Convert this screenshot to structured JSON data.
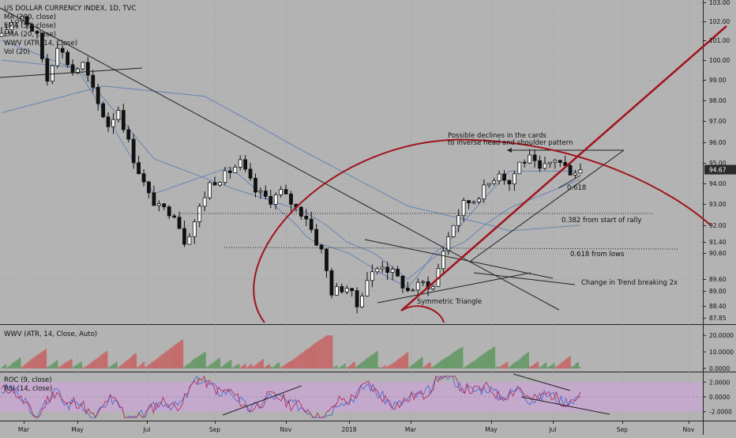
{
  "chart_data": {
    "type": "candlestick",
    "title": "US DOLLAR CURRENCY INDEX, 1D, TVC",
    "legend": [
      "MA (200, close)",
      "EMA (50, close)",
      "EMA (20, close)",
      "WWV (ATR, 14, Close)",
      "Vol (20)"
    ],
    "price_axis": {
      "ticks": [
        "103.00",
        "102.00",
        "101.00",
        "100.00",
        "99.00",
        "98.00",
        "97.00",
        "96.00",
        "95.00",
        "94.00",
        "93.00",
        "92.00",
        "91.40",
        "90.60",
        "89.60",
        "89.00",
        "88.40",
        "87.85"
      ],
      "last_price": "94.67",
      "range": [
        87.5,
        103.3
      ]
    },
    "time_axis": [
      "Mar",
      "May",
      "Jul",
      "Sep",
      "Nov",
      "2018",
      "Mar",
      "May",
      "Jul",
      "Sep",
      "Nov"
    ],
    "price_path": [
      [
        0,
        101.2
      ],
      [
        2,
        102.0
      ],
      [
        4,
        102.3
      ],
      [
        7,
        101.2
      ],
      [
        9,
        99.0
      ],
      [
        11,
        100.8
      ],
      [
        14,
        99.4
      ],
      [
        16,
        99.8
      ],
      [
        19,
        97.8
      ],
      [
        21,
        96.8
      ],
      [
        23,
        97.6
      ],
      [
        26,
        95.2
      ],
      [
        29,
        93.4
      ],
      [
        31,
        92.8
      ],
      [
        34,
        92.6
      ],
      [
        36,
        91.4
      ],
      [
        38,
        92.2
      ],
      [
        41,
        94.0
      ],
      [
        44,
        94.4
      ],
      [
        47,
        95.0
      ],
      [
        50,
        93.6
      ],
      [
        53,
        93.2
      ],
      [
        55,
        93.6
      ],
      [
        58,
        92.8
      ],
      [
        60,
        92.4
      ],
      [
        63,
        90.8
      ],
      [
        65,
        89.0
      ],
      [
        68,
        89.2
      ],
      [
        70,
        88.4
      ],
      [
        72,
        89.6
      ],
      [
        75,
        90.2
      ],
      [
        78,
        89.6
      ],
      [
        80,
        89.0
      ],
      [
        83,
        89.4
      ],
      [
        85,
        89.2
      ],
      [
        88,
        91.6
      ],
      [
        91,
        93.0
      ],
      [
        93,
        93.2
      ],
      [
        96,
        94.0
      ],
      [
        98,
        94.6
      ],
      [
        100,
        94.0
      ],
      [
        102,
        95.0
      ],
      [
        104,
        95.2
      ],
      [
        106,
        94.6
      ],
      [
        109,
        95.2
      ],
      [
        112,
        94.6
      ],
      [
        114,
        94.67
      ]
    ],
    "indicators": {
      "ma200": [
        [
          0,
          97.4
        ],
        [
          20,
          98.7
        ],
        [
          40,
          98.2
        ],
        [
          60,
          95.5
        ],
        [
          80,
          92.9
        ],
        [
          100,
          91.8
        ],
        [
          114,
          92.0
        ]
      ],
      "ema50": [
        [
          0,
          100.0
        ],
        [
          15,
          99.6
        ],
        [
          30,
          95.2
        ],
        [
          45,
          93.8
        ],
        [
          60,
          92.6
        ],
        [
          80,
          89.6
        ],
        [
          100,
          92.8
        ],
        [
          114,
          94.2
        ]
      ],
      "ema20": [
        [
          0,
          101.0
        ],
        [
          15,
          99.5
        ],
        [
          30,
          93.5
        ],
        [
          45,
          94.8
        ],
        [
          60,
          91.6
        ],
        [
          80,
          89.2
        ],
        [
          100,
          94.6
        ],
        [
          114,
          94.6
        ]
      ]
    },
    "annotations": [
      {
        "text": "Possible declines in the cards",
        "kind": "label"
      },
      {
        "text": "to inverse head and shoulder pattern",
        "kind": "label"
      },
      {
        "text": "0.618",
        "kind": "label"
      },
      {
        "text": "0.382 from start of rally",
        "kind": "level",
        "value": 92.5
      },
      {
        "text": "0.618 from lows",
        "kind": "level",
        "value": 90.9
      },
      {
        "text": "Change in Trend breaking 2x",
        "kind": "label"
      },
      {
        "text": "Symmetric Triangle",
        "kind": "label"
      }
    ],
    "wwv_panel": {
      "title": "WWV (ATR, 14, Close, Auto)",
      "ticks": [
        "20.0000",
        "10.0000",
        "0.0000"
      ],
      "range": [
        0,
        22
      ]
    },
    "roc_panel": {
      "titles": [
        "ROC (9, close)",
        "RSI (14, close)"
      ],
      "ticks": [
        "2.0000",
        "0.0000",
        "-2.0000"
      ],
      "range": [
        -3,
        3
      ]
    },
    "colors": {
      "background": "#b3b3b3",
      "candle": "#111111",
      "ma_blue": "#6a86b3",
      "trend_red": "#a0141e",
      "wwv_green": "#6a9a6a",
      "wwv_red": "#c46c6c",
      "roc_band": "#c9a6d4",
      "rsi_blue": "#4c6cd0",
      "roc_red": "#b0305a",
      "price_tag": "#2a2a2a"
    }
  }
}
